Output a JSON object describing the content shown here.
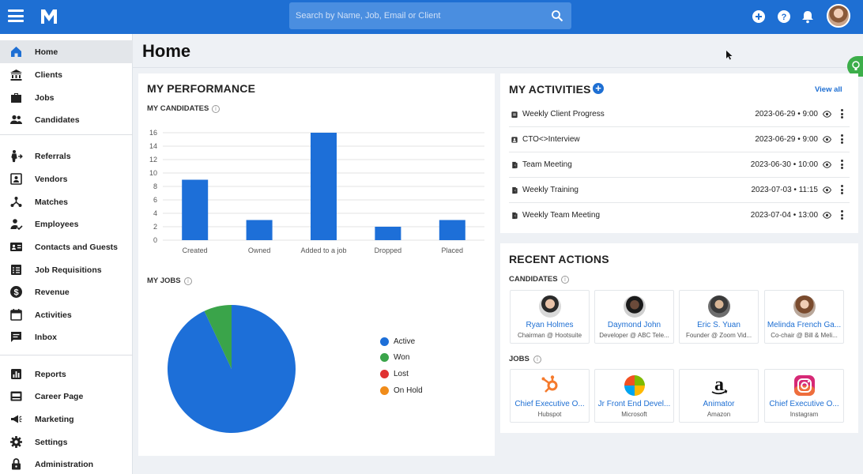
{
  "header": {
    "search_placeholder": "Search by Name, Job, Email or Client",
    "brand_color": "#1e6fd3"
  },
  "page": {
    "title": "Home"
  },
  "sidebar": {
    "items": [
      {
        "label": "Home",
        "icon": "home-icon",
        "active": true
      },
      {
        "label": "Clients",
        "icon": "bank-icon"
      },
      {
        "label": "Jobs",
        "icon": "briefcase-icon"
      },
      {
        "label": "Candidates",
        "icon": "people-icon"
      },
      {
        "label": "Referrals",
        "icon": "referral-icon"
      },
      {
        "label": "Vendors",
        "icon": "vendor-icon"
      },
      {
        "label": "Matches",
        "icon": "matches-icon"
      },
      {
        "label": "Employees",
        "icon": "employee-icon"
      },
      {
        "label": "Contacts and Guests",
        "icon": "contacts-icon"
      },
      {
        "label": "Job Requisitions",
        "icon": "requisition-icon"
      },
      {
        "label": "Revenue",
        "icon": "dollar-icon"
      },
      {
        "label": "Activities",
        "icon": "calendar-icon"
      },
      {
        "label": "Inbox",
        "icon": "inbox-icon"
      },
      {
        "label": "Reports",
        "icon": "reports-icon"
      },
      {
        "label": "Career Page",
        "icon": "career-page-icon"
      },
      {
        "label": "Marketing",
        "icon": "megaphone-icon"
      },
      {
        "label": "Settings",
        "icon": "gear-icon"
      },
      {
        "label": "Administration",
        "icon": "lock-icon"
      }
    ]
  },
  "performance": {
    "title": "MY PERFORMANCE",
    "candidates_label": "MY CANDIDATES",
    "jobs_label": "MY JOBS",
    "legend": [
      "Active",
      "Won",
      "Lost",
      "On Hold"
    ]
  },
  "chart_data": [
    {
      "type": "bar",
      "categories": [
        "Created",
        "Owned",
        "Added to a job",
        "Dropped",
        "Placed"
      ],
      "values": [
        9,
        3,
        16,
        2,
        3
      ],
      "ylim": [
        0,
        16
      ],
      "yticks": [
        0,
        2,
        4,
        6,
        8,
        10,
        12,
        14,
        16
      ],
      "grid": true,
      "color": "#1d6fd8"
    },
    {
      "type": "pie",
      "labels": [
        "Active",
        "Won",
        "Lost",
        "On Hold"
      ],
      "values": [
        93,
        7,
        0,
        0
      ],
      "colors": [
        "#1d6fd8",
        "#3aa44a",
        "#e03232",
        "#f08c1a"
      ],
      "legend_position": "right"
    }
  ],
  "activities": {
    "title": "MY ACTIVITIES",
    "view_all": "View all",
    "rows": [
      {
        "title": "Weekly Client Progress",
        "date": "2023-06-29 • 9:00",
        "icon": "clipboard-icon"
      },
      {
        "title": "CTO<>Interview",
        "date": "2023-06-29 • 9:00",
        "icon": "person-card-icon"
      },
      {
        "title": "Team Meeting",
        "date": "2023-06-30 • 10:00",
        "icon": "door-icon"
      },
      {
        "title": "Weekly Training",
        "date": "2023-07-03 • 11:15",
        "icon": "door-icon"
      },
      {
        "title": "Weekly Team Meeting",
        "date": "2023-07-04 • 13:00",
        "icon": "door-icon"
      }
    ]
  },
  "recent": {
    "title": "RECENT ACTIONS",
    "candidates_label": "CANDIDATES",
    "jobs_label": "JOBS",
    "candidates": [
      {
        "name": "Ryan Holmes",
        "sub": "Chairman @ Hootsuite"
      },
      {
        "name": "Daymond John",
        "sub": "Developer @ ABC Tele..."
      },
      {
        "name": "Eric S. Yuan",
        "sub": "Founder @ Zoom Vid..."
      },
      {
        "name": "Melinda French Ga...",
        "sub": "Co-chair @ Bill & Meli..."
      }
    ],
    "jobs": [
      {
        "name": "Chief Executive O...",
        "sub": "Hubspot",
        "logo": "hubspot-logo"
      },
      {
        "name": "Jr Front End Devel...",
        "sub": "Microsoft",
        "logo": "microsoft-logo"
      },
      {
        "name": "Animator",
        "sub": "Amazon",
        "logo": "amazon-logo"
      },
      {
        "name": "Chief Executive O...",
        "sub": "Instagram",
        "logo": "instagram-logo"
      }
    ]
  }
}
